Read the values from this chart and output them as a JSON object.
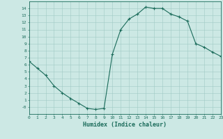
{
  "xlabel": "Humidex (Indice chaleur)",
  "x_values": [
    0,
    1,
    2,
    3,
    4,
    5,
    6,
    7,
    8,
    9,
    10,
    11,
    12,
    13,
    14,
    15,
    16,
    17,
    18,
    19,
    20,
    21,
    22,
    23
  ],
  "y_values": [
    6.5,
    5.5,
    4.5,
    3.0,
    2.0,
    1.2,
    0.5,
    -0.2,
    -0.35,
    -0.2,
    7.5,
    11.0,
    12.5,
    13.2,
    14.2,
    14.0,
    14.0,
    13.2,
    12.8,
    12.2,
    9.0,
    8.5,
    7.8,
    7.2
  ],
  "line_color": "#1a6b5a",
  "marker": "+",
  "marker_size": 3.5,
  "linewidth": 0.8,
  "xlim": [
    0,
    23
  ],
  "ylim": [
    -1,
    15
  ],
  "yticks": [
    0,
    1,
    2,
    3,
    4,
    5,
    6,
    7,
    8,
    9,
    10,
    11,
    12,
    13,
    14
  ],
  "xticks": [
    0,
    1,
    2,
    3,
    4,
    5,
    6,
    7,
    8,
    9,
    10,
    11,
    12,
    13,
    14,
    15,
    16,
    17,
    18,
    19,
    20,
    21,
    22,
    23
  ],
  "xtick_labels": [
    "0",
    "1",
    "2",
    "3",
    "4",
    "5",
    "6",
    "7",
    "8",
    "9",
    "10",
    "11",
    "12",
    "13",
    "14",
    "15",
    "16",
    "17",
    "18",
    "19",
    "20",
    "21",
    "22",
    "23"
  ],
  "ytick_labels": [
    "-0",
    "1",
    "2",
    "3",
    "4",
    "5",
    "6",
    "7",
    "8",
    "9",
    "10",
    "11",
    "12",
    "13",
    "14"
  ],
  "bg_color": "#cce8e4",
  "grid_color": "#a0cac4",
  "font_color": "#1a6b5a",
  "tick_fontsize": 4.5,
  "xlabel_fontsize": 6.0
}
